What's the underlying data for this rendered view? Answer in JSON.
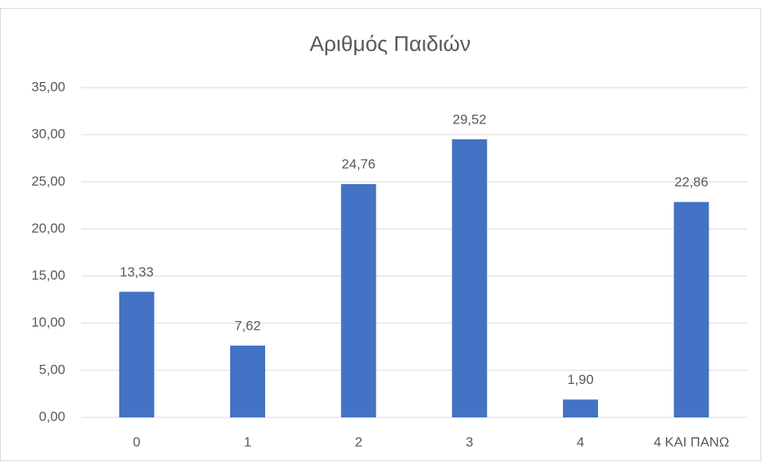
{
  "chart_data": {
    "type": "bar",
    "title": "Αριθμός Παιδιών",
    "categories": [
      "0",
      "1",
      "2",
      "3",
      "4",
      "4 ΚΑΙ ΠΑΝΩ"
    ],
    "values": [
      13.33,
      7.62,
      24.76,
      29.52,
      1.9,
      22.86
    ],
    "value_labels": [
      "13,33",
      "7,62",
      "24,76",
      "29,52",
      "1,90",
      "22,86"
    ],
    "color": "#4472c4",
    "ylim": [
      0,
      35
    ],
    "yticks": [
      {
        "value": 0,
        "label": "0,00"
      },
      {
        "value": 5,
        "label": "5,00"
      },
      {
        "value": 10,
        "label": "10,00"
      },
      {
        "value": 15,
        "label": "15,00"
      },
      {
        "value": 20,
        "label": "20,00"
      },
      {
        "value": 25,
        "label": "25,00"
      },
      {
        "value": 30,
        "label": "30,00"
      },
      {
        "value": 35,
        "label": "35,00"
      }
    ],
    "grid": true
  }
}
